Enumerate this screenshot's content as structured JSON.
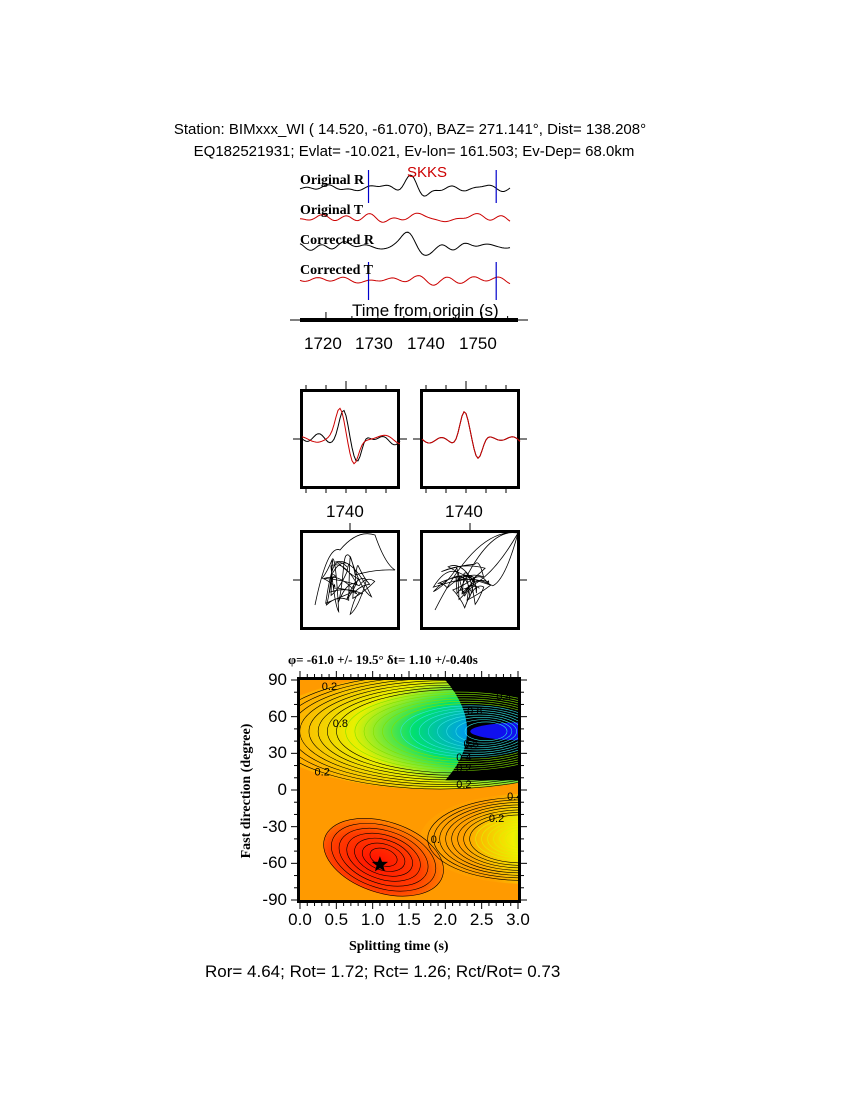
{
  "header": {
    "line1": "Station: BIMxxx_WI (  14.520,  -61.070), BAZ=  271.141°, Dist=  138.208°",
    "line2": "EQ182521931; Evlat= -10.021, Ev-lon= 161.503; Ev-Dep= 68.0km"
  },
  "traces": {
    "phase_label": "SKKS",
    "labels": [
      "Original R",
      "Original T",
      "Corrected R",
      "Corrected T"
    ],
    "xlabel": "Time from origin (s)",
    "xticks": [
      "1720",
      "1730",
      "1740",
      "1750"
    ],
    "xlim": [
      1715,
      1757
    ],
    "window": [
      1728.2,
      1752.8
    ]
  },
  "waveform_panels": {
    "tick_labels": [
      "1740",
      "1740"
    ]
  },
  "colors": {
    "radial": "#000000",
    "transverse": "#cc0000",
    "window_marker": "#0000cc",
    "phase_label": "#cc0000"
  },
  "chart_data": {
    "type": "heatmap",
    "title": "φ= -61.0 +/- 19.5° δt= 1.10 +/-0.40s",
    "xlabel": "Splitting time (s)",
    "ylabel": "Fast direction (degree)",
    "xlim": [
      0,
      3
    ],
    "ylim": [
      -90,
      90
    ],
    "xticks": [
      "0.0",
      "0.5",
      "1.0",
      "1.5",
      "2.0",
      "2.5",
      "3.0"
    ],
    "yticks": [
      "90",
      "60",
      "30",
      "0",
      "-30",
      "-60",
      "-90"
    ],
    "best_fit": {
      "dt": 1.1,
      "phi": -61.0
    },
    "contour_labels": [
      "0.2",
      "0.4",
      "0.4",
      "0.6",
      "0.8",
      "0.6",
      "0.4",
      "0.2",
      "0.2",
      "0.2",
      "0.4",
      "0.2",
      "0."
    ]
  },
  "stats": "Ror= 4.64; Rot= 1.72; Rct= 1.26; Rct/Rot= 0.73"
}
